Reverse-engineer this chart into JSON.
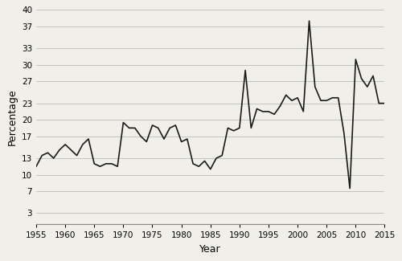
{
  "years": [
    1955,
    1956,
    1957,
    1958,
    1959,
    1960,
    1961,
    1962,
    1963,
    1964,
    1965,
    1966,
    1967,
    1968,
    1969,
    1970,
    1971,
    1972,
    1973,
    1974,
    1975,
    1976,
    1977,
    1978,
    1979,
    1980,
    1981,
    1982,
    1983,
    1984,
    1985,
    1986,
    1987,
    1988,
    1989,
    1990,
    1991,
    1992,
    1993,
    1994,
    1995,
    1996,
    1997,
    1998,
    1999,
    2000,
    2001,
    2002,
    2003,
    2004,
    2005,
    2006,
    2007,
    2008,
    2009,
    2010,
    2011,
    2012,
    2013,
    2014,
    2015
  ],
  "values": [
    11.5,
    13.5,
    14.0,
    13.0,
    14.5,
    15.5,
    14.5,
    13.5,
    15.5,
    16.5,
    12.0,
    11.5,
    12.0,
    12.0,
    11.5,
    19.5,
    18.5,
    18.5,
    17.0,
    16.0,
    19.0,
    18.5,
    16.5,
    18.5,
    19.0,
    16.0,
    16.5,
    12.0,
    11.5,
    12.5,
    11.0,
    13.0,
    13.5,
    18.5,
    18.0,
    18.5,
    29.0,
    18.5,
    22.0,
    21.5,
    21.5,
    21.0,
    22.5,
    24.5,
    23.5,
    24.0,
    21.5,
    38.0,
    26.0,
    23.5,
    23.5,
    24.0,
    24.0,
    17.5,
    7.5,
    31.0,
    27.5,
    26.0,
    28.0,
    23.0,
    23.0
  ],
  "xlabel": "Year",
  "ylabel": "Percentage",
  "xlim": [
    1955,
    2015
  ],
  "ylim": [
    1,
    40
  ],
  "yticks": [
    3,
    7,
    10,
    13,
    17,
    20,
    23,
    27,
    30,
    33,
    37,
    40
  ],
  "xticks": [
    1955,
    1960,
    1965,
    1970,
    1975,
    1980,
    1985,
    1990,
    1995,
    2000,
    2005,
    2010,
    2015
  ],
  "line_color": "#1a1a1a",
  "line_width": 1.2,
  "background_color": "#f0efea",
  "plot_bg_color": "#f0efea",
  "grid_color": "#bbbbbb",
  "tick_label_fontsize": 7.5,
  "axis_label_fontsize": 9
}
